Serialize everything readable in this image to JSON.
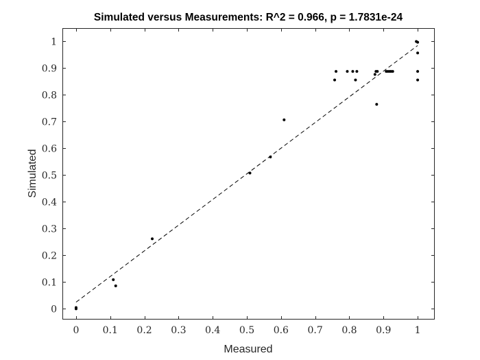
{
  "chart_data": {
    "type": "scatter",
    "title": "Simulated versus Measurements: R^2 = 0.966, p = 1.7831e-24",
    "xlabel": "Measured",
    "ylabel": "Simulated",
    "xlim": [
      -0.04,
      1.05
    ],
    "ylim": [
      -0.04,
      1.05
    ],
    "x_ticks": [
      0,
      0.1,
      0.2,
      0.3,
      0.4,
      0.5,
      0.6,
      0.7,
      0.8,
      0.9,
      1
    ],
    "x_tick_labels": [
      "0",
      "0.1",
      "0.2",
      "0.3",
      "0.4",
      "0.5",
      "0.6",
      "0.7",
      "0.8",
      "0.9",
      "1"
    ],
    "y_ticks": [
      0,
      0.1,
      0.2,
      0.3,
      0.4,
      0.5,
      0.6,
      0.7,
      0.8,
      0.9,
      1
    ],
    "y_tick_labels": [
      "0",
      "0.1",
      "0.2",
      "0.3",
      "0.4",
      "0.5",
      "0.6",
      "0.7",
      "0.8",
      "0.9",
      "1"
    ],
    "grid": false,
    "series": [
      {
        "points": [
          {
            "x": 0.0,
            "y": 0.0
          },
          {
            "x": 0.0,
            "y": 0.005
          },
          {
            "x": 0.109,
            "y": 0.109
          },
          {
            "x": 0.116,
            "y": 0.086
          },
          {
            "x": 0.223,
            "y": 0.262
          },
          {
            "x": 0.509,
            "y": 0.508
          },
          {
            "x": 0.569,
            "y": 0.568
          },
          {
            "x": 0.609,
            "y": 0.707
          },
          {
            "x": 0.757,
            "y": 0.856
          },
          {
            "x": 0.761,
            "y": 0.888
          },
          {
            "x": 0.794,
            "y": 0.888
          },
          {
            "x": 0.81,
            "y": 0.888
          },
          {
            "x": 0.818,
            "y": 0.856
          },
          {
            "x": 0.822,
            "y": 0.888
          },
          {
            "x": 0.875,
            "y": 0.877
          },
          {
            "x": 0.878,
            "y": 0.888
          },
          {
            "x": 0.882,
            "y": 0.888
          },
          {
            "x": 0.88,
            "y": 0.765
          },
          {
            "x": 0.908,
            "y": 0.888
          },
          {
            "x": 0.913,
            "y": 0.888
          },
          {
            "x": 0.918,
            "y": 0.888
          },
          {
            "x": 0.922,
            "y": 0.888
          },
          {
            "x": 0.927,
            "y": 0.888
          },
          {
            "x": 0.996,
            "y": 1.0
          },
          {
            "x": 1.0,
            "y": 0.997
          },
          {
            "x": 1.0,
            "y": 0.957
          },
          {
            "x": 1.0,
            "y": 0.888
          },
          {
            "x": 1.0,
            "y": 0.856
          }
        ],
        "marker_color": "#000000"
      }
    ],
    "fit_line": {
      "style": "dashed",
      "color": "#000000",
      "x": [
        0.0,
        1.0
      ],
      "y": [
        0.025,
        0.985
      ]
    }
  }
}
